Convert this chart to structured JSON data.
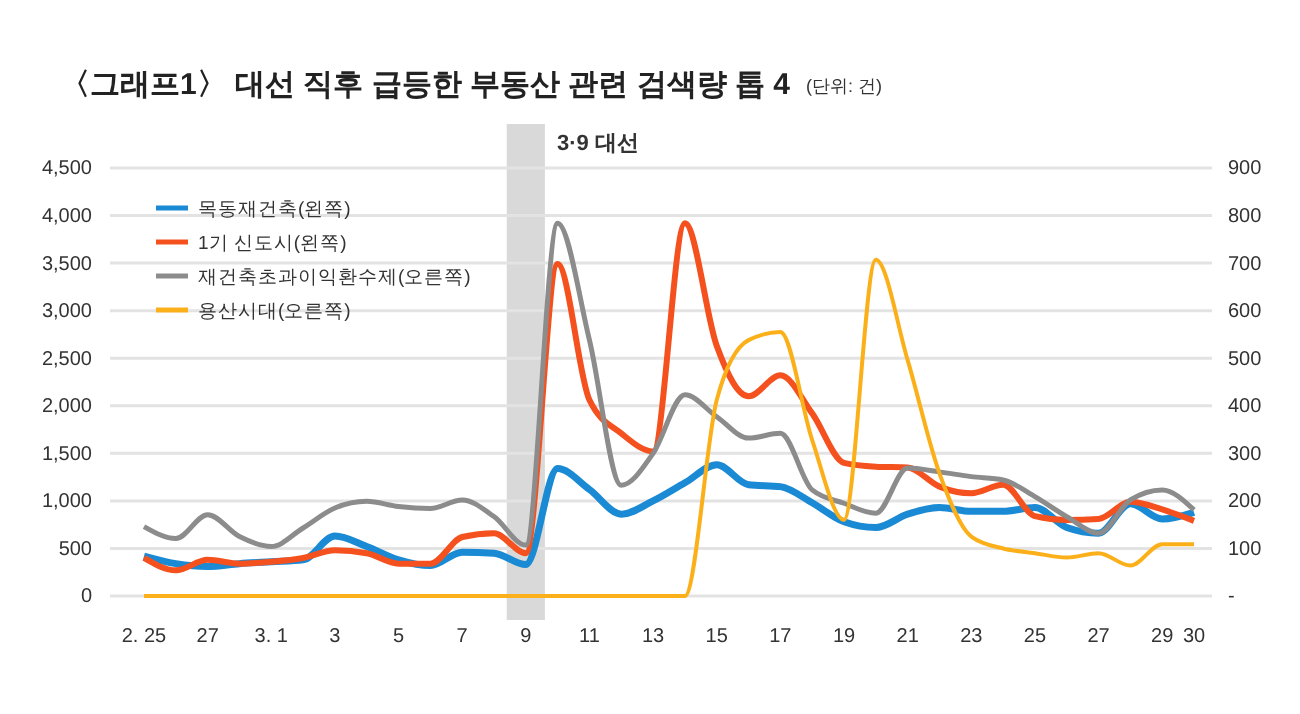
{
  "chart_data": {
    "type": "line",
    "title": "〈그래프1〉 대선 직후 급등한 부동산 관련 검색량 톱 4",
    "subtitle": "(단위: 건)",
    "categories": [
      "2. 25",
      null,
      "27",
      null,
      "3. 1",
      null,
      "3",
      null,
      "5",
      null,
      "7",
      null,
      "9",
      null,
      "11",
      null,
      "13",
      null,
      "15",
      null,
      "17",
      null,
      "19",
      null,
      "21",
      null,
      "23",
      null,
      "25",
      null,
      "27",
      null,
      "29",
      "30"
    ],
    "series": [
      {
        "name": "목동재건축(왼쪽)",
        "color": "#1a8ad4",
        "values": [
          420,
          340,
          310,
          340,
          360,
          380,
          630,
          520,
          380,
          320,
          460,
          450,
          330,
          1340,
          1120,
          860,
          1000,
          1190,
          1380,
          1170,
          1150,
          980,
          780,
          720,
          860,
          930,
          890,
          890,
          930,
          720,
          660,
          970,
          810,
          880
        ]
      },
      {
        "name": "1기 신도시(왼쪽)",
        "color": "#f4511e",
        "values": [
          400,
          270,
          380,
          340,
          360,
          400,
          480,
          450,
          340,
          340,
          620,
          660,
          450,
          3490,
          2060,
          1710,
          1520,
          3920,
          2630,
          2100,
          2320,
          1920,
          1400,
          1360,
          1350,
          1150,
          1080,
          1170,
          840,
          800,
          810,
          990,
          910,
          790
        ]
      },
      {
        "name": "재건축초과이익환수제(오른쪽)",
        "color": "#8c8c8c",
        "axis": "y2",
        "values": [
          146,
          121,
          171,
          125,
          104,
          143,
          185,
          199,
          188,
          184,
          202,
          167,
          107,
          784,
          538,
          233,
          300,
          423,
          377,
          332,
          342,
          223,
          195,
          174,
          269,
          261,
          251,
          244,
          209,
          167,
          132,
          202,
          223,
          181
        ]
      },
      {
        "name": "용산시대(오른쪽)",
        "color": "#fbb01a",
        "axis": "y2",
        "values": [
          0,
          0,
          0,
          0,
          0,
          0,
          0,
          0,
          0,
          0,
          0,
          0,
          0,
          0,
          0,
          0,
          0,
          0,
          412,
          538,
          555,
          328,
          160,
          707,
          496,
          258,
          125,
          100,
          90,
          81,
          90,
          64,
          109,
          109
        ]
      }
    ],
    "ylim": [
      0,
      4500
    ],
    "yticks": [
      0,
      {
        "value": 500,
        "label": "500"
      },
      {
        "value": 1000,
        "label": "1,000"
      },
      {
        "value": 1500,
        "label": "1,500"
      },
      {
        "value": 2000,
        "label": "2,000"
      },
      {
        "value": 2500,
        "label": "2,500"
      },
      {
        "value": 3000,
        "label": "3,000"
      },
      {
        "value": 3500,
        "label": "3,500"
      },
      {
        "value": 4000,
        "label": "4,000"
      },
      {
        "value": 4500,
        "label": "4,500"
      }
    ],
    "y2lim": [
      0,
      900
    ],
    "y2ticks": [
      {
        "value": 0,
        "label": "-"
      },
      100,
      200,
      300,
      400,
      500,
      600,
      700,
      800,
      900
    ],
    "bands": [
      {
        "axis": "x",
        "from": "9",
        "to": "9",
        "label": "3·9 대선",
        "color": "#d9d9d9"
      }
    ],
    "grid": "y",
    "legend": "top left",
    "marker": "none",
    "line_style": "solid"
  }
}
